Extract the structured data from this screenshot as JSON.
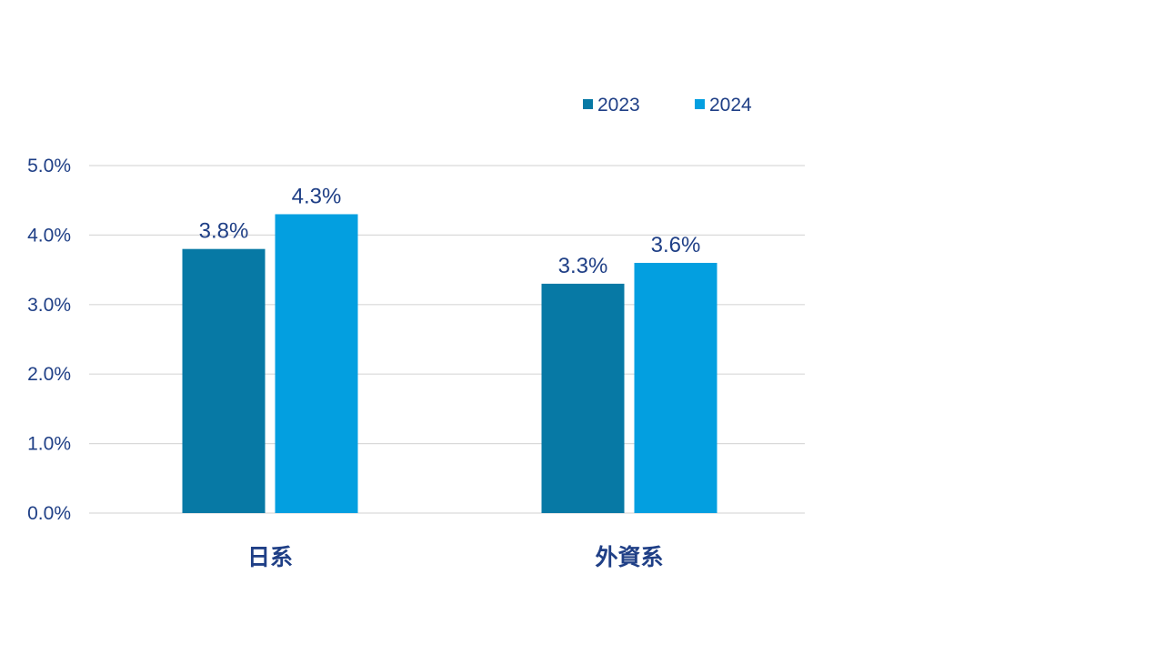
{
  "chart_data": {
    "type": "bar",
    "title": "",
    "xlabel": "",
    "ylabel": "",
    "categories": [
      "日系",
      "外資系"
    ],
    "series": [
      {
        "name": "2023",
        "values": [
          3.8,
          3.3
        ],
        "labels": [
          "3.8%",
          "3.3%"
        ],
        "color": "#0779a5"
      },
      {
        "name": "2024",
        "values": [
          4.3,
          3.6
        ],
        "labels": [
          "4.3%",
          "3.6%"
        ],
        "color": "#039fe0"
      }
    ],
    "ylim": [
      0,
      5
    ],
    "yticks": [
      0,
      1,
      2,
      3,
      4,
      5
    ],
    "ytick_labels": [
      "0.0%",
      "1.0%",
      "2.0%",
      "3.0%",
      "4.0%",
      "5.0%"
    ],
    "grid": true,
    "legend_position": "top-right",
    "text_color": "#1f3f86",
    "grid_color": "#d9d9d9"
  }
}
